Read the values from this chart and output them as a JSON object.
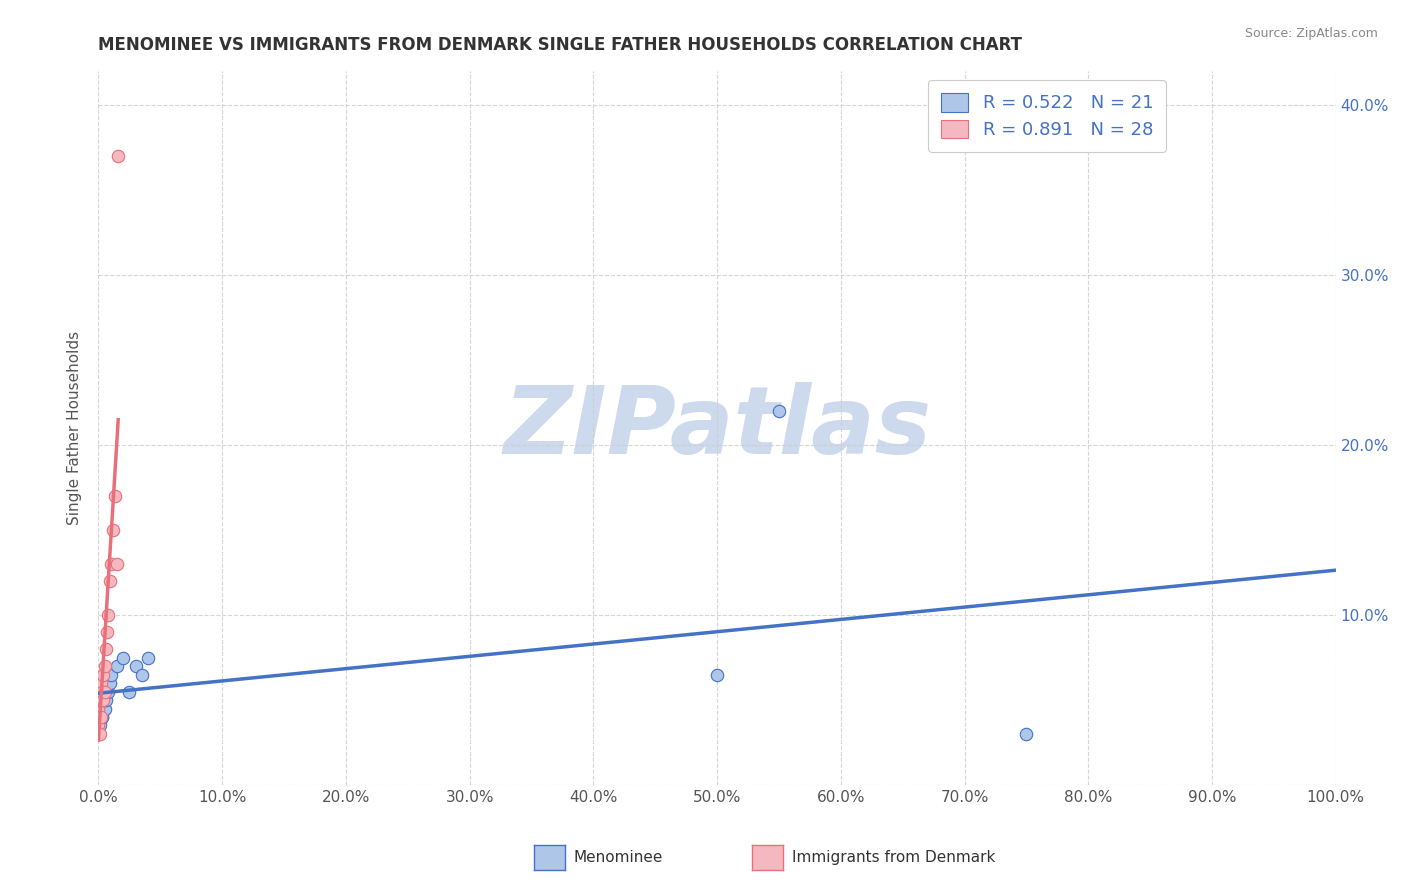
{
  "title": "MENOMINEE VS IMMIGRANTS FROM DENMARK SINGLE FATHER HOUSEHOLDS CORRELATION CHART",
  "source": "Source: ZipAtlas.com",
  "ylabel": "Single Father Households",
  "watermark": "ZIPatlas",
  "legend_entries": [
    {
      "label": "Menominee",
      "R": 0.522,
      "N": 21,
      "color": "#aec6e8",
      "line_color": "#4472c4"
    },
    {
      "label": "Immigrants from Denmark",
      "R": 0.891,
      "N": 28,
      "color": "#f4b8c1",
      "line_color": "#e8707a"
    }
  ],
  "menominee_x": [
    0.0,
    0.001,
    0.002,
    0.003,
    0.003,
    0.004,
    0.005,
    0.005,
    0.006,
    0.008,
    0.009,
    0.01,
    0.015,
    0.02,
    0.025,
    0.03,
    0.035,
    0.04,
    0.5,
    0.55,
    0.75
  ],
  "menominee_y": [
    0.03,
    0.035,
    0.04,
    0.04,
    0.04,
    0.045,
    0.045,
    0.05,
    0.05,
    0.055,
    0.06,
    0.065,
    0.07,
    0.075,
    0.055,
    0.07,
    0.065,
    0.075,
    0.065,
    0.22,
    0.03
  ],
  "denmark_x": [
    0.0,
    0.0,
    0.0,
    0.0,
    0.0,
    0.0,
    0.001,
    0.001,
    0.001,
    0.001,
    0.002,
    0.002,
    0.002,
    0.003,
    0.003,
    0.004,
    0.004,
    0.005,
    0.005,
    0.006,
    0.007,
    0.008,
    0.009,
    0.01,
    0.012,
    0.013,
    0.015,
    0.016
  ],
  "denmark_y": [
    0.03,
    0.035,
    0.04,
    0.045,
    0.05,
    0.06,
    0.03,
    0.04,
    0.05,
    0.055,
    0.04,
    0.05,
    0.06,
    0.05,
    0.055,
    0.05,
    0.065,
    0.055,
    0.07,
    0.08,
    0.09,
    0.1,
    0.12,
    0.13,
    0.15,
    0.17,
    0.13,
    0.37
  ],
  "xlim": [
    0.0,
    1.0
  ],
  "ylim": [
    0.0,
    0.42
  ],
  "xticks": [
    0.0,
    0.1,
    0.2,
    0.3,
    0.4,
    0.5,
    0.6,
    0.7,
    0.8,
    0.9,
    1.0
  ],
  "yticks": [
    0.0,
    0.1,
    0.2,
    0.3,
    0.4
  ],
  "xticklabels": [
    "0.0%",
    "10.0%",
    "20.0%",
    "30.0%",
    "40.0%",
    "50.0%",
    "60.0%",
    "70.0%",
    "80.0%",
    "90.0%",
    "100.0%"
  ],
  "left_yticklabels": [
    "",
    "",
    "",
    "",
    ""
  ],
  "right_yticklabels": [
    "",
    "10.0%",
    "20.0%",
    "30.0%",
    "40.0%"
  ],
  "background_color": "#ffffff",
  "grid_color": "#cccccc",
  "title_fontsize": 12,
  "axis_label_fontsize": 11,
  "tick_fontsize": 11,
  "watermark_color": "#cdd9ed",
  "menominee_dot_color": "#aec6e8",
  "menominee_line_color": "#4472c4",
  "denmark_dot_color": "#f4b8c1",
  "denmark_line_color": "#e8707a",
  "bottom_legend_menominee": "Menominee",
  "bottom_legend_denmark": "Immigrants from Denmark"
}
